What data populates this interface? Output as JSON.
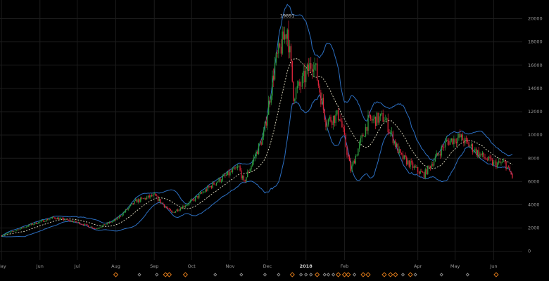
{
  "chart_data": {
    "type": "candlestick",
    "y_ticks": [
      0,
      2000,
      4000,
      6000,
      8000,
      10000,
      12000,
      14000,
      16000,
      18000,
      20000
    ],
    "ylim": [
      -500,
      21000
    ],
    "x_tick_labels": [
      {
        "label": "May",
        "t": "2017-05-01",
        "bold": false
      },
      {
        "label": "Jun",
        "t": "2017-06-01",
        "bold": false
      },
      {
        "label": "Jul",
        "t": "2017-07-01",
        "bold": false
      },
      {
        "label": "Aug",
        "t": "2017-08-01",
        "bold": false
      },
      {
        "label": "Sep",
        "t": "2017-09-01",
        "bold": false
      },
      {
        "label": "Oct",
        "t": "2017-10-01",
        "bold": false
      },
      {
        "label": "Nov",
        "t": "2017-11-01",
        "bold": false
      },
      {
        "label": "Dec",
        "t": "2017-12-01",
        "bold": false
      },
      {
        "label": "2018",
        "t": "2018-01-01",
        "bold": true
      },
      {
        "label": "Feb",
        "t": "2018-02-01",
        "bold": false
      },
      {
        "label": "Apr",
        "t": "2018-04-01",
        "bold": false
      },
      {
        "label": "May",
        "t": "2018-05-01",
        "bold": false
      },
      {
        "label": "Jun",
        "t": "2018-06-01",
        "bold": false
      }
    ],
    "xlim": [
      "2017-05-01",
      "2018-06-24"
    ],
    "peak_annotation": {
      "text": "19891",
      "t": "2017-12-17",
      "value": 19891
    },
    "price_anchors": [
      [
        "2017-05-01",
        1350
      ],
      [
        "2017-05-25",
        2300
      ],
      [
        "2017-06-12",
        2900
      ],
      [
        "2017-07-01",
        2500
      ],
      [
        "2017-07-16",
        1950
      ],
      [
        "2017-08-01",
        2700
      ],
      [
        "2017-08-17",
        4300
      ],
      [
        "2017-09-01",
        4800
      ],
      [
        "2017-09-15",
        3300
      ],
      [
        "2017-10-01",
        4300
      ],
      [
        "2017-10-20",
        5900
      ],
      [
        "2017-11-08",
        7200
      ],
      [
        "2017-11-12",
        5900
      ],
      [
        "2017-11-28",
        10000
      ],
      [
        "2017-12-07",
        16000
      ],
      [
        "2017-12-17",
        19200
      ],
      [
        "2017-12-22",
        13500
      ],
      [
        "2017-12-28",
        14300
      ],
      [
        "2018-01-07",
        16500
      ],
      [
        "2018-01-17",
        11200
      ],
      [
        "2018-01-28",
        11700
      ],
      [
        "2018-02-06",
        7000
      ],
      [
        "2018-02-20",
        11200
      ],
      [
        "2018-03-05",
        11500
      ],
      [
        "2018-03-18",
        8200
      ],
      [
        "2018-04-01",
        6900
      ],
      [
        "2018-04-06",
        6600
      ],
      [
        "2018-04-24",
        9400
      ],
      [
        "2018-05-05",
        9800
      ],
      [
        "2018-05-20",
        8400
      ],
      [
        "2018-06-01",
        7500
      ],
      [
        "2018-06-10",
        7600
      ],
      [
        "2018-06-16",
        6400
      ]
    ],
    "colors": {
      "up": "#2e9e3f",
      "down": "#e0253c",
      "bands": "#2c6fc2",
      "ma": "#e8e4c8",
      "grid": "#1c1c1c",
      "axis_text": "#9a9a9a",
      "marker_orange": "#e07b1a",
      "marker_grey": "#8c8c8c"
    },
    "markers": [
      {
        "t": "2017-08-01",
        "kind": "orange"
      },
      {
        "t": "2017-08-20",
        "kind": "grey"
      },
      {
        "t": "2017-09-03",
        "kind": "grey"
      },
      {
        "t": "2017-09-10",
        "kind": "orange"
      },
      {
        "t": "2017-09-13",
        "kind": "orange"
      },
      {
        "t": "2017-09-26",
        "kind": "orange"
      },
      {
        "t": "2017-10-20",
        "kind": "grey"
      },
      {
        "t": "2017-11-10",
        "kind": "grey"
      },
      {
        "t": "2017-11-29",
        "kind": "grey"
      },
      {
        "t": "2017-12-10",
        "kind": "grey"
      },
      {
        "t": "2017-12-21",
        "kind": "orange"
      },
      {
        "t": "2017-12-28",
        "kind": "grey"
      },
      {
        "t": "2018-01-01",
        "kind": "grey"
      },
      {
        "t": "2018-01-05",
        "kind": "grey"
      },
      {
        "t": "2018-01-10",
        "kind": "orange"
      },
      {
        "t": "2018-01-16",
        "kind": "grey"
      },
      {
        "t": "2018-01-19",
        "kind": "grey"
      },
      {
        "t": "2018-01-23",
        "kind": "grey"
      },
      {
        "t": "2018-01-27",
        "kind": "orange"
      },
      {
        "t": "2018-02-01",
        "kind": "orange"
      },
      {
        "t": "2018-02-04",
        "kind": "orange"
      },
      {
        "t": "2018-02-09",
        "kind": "grey"
      },
      {
        "t": "2018-02-16",
        "kind": "orange"
      },
      {
        "t": "2018-02-20",
        "kind": "orange"
      },
      {
        "t": "2018-03-05",
        "kind": "orange"
      },
      {
        "t": "2018-03-10",
        "kind": "orange"
      },
      {
        "t": "2018-03-14",
        "kind": "orange"
      },
      {
        "t": "2018-03-20",
        "kind": "grey"
      },
      {
        "t": "2018-03-26",
        "kind": "orange"
      },
      {
        "t": "2018-03-30",
        "kind": "grey"
      },
      {
        "t": "2018-04-20",
        "kind": "grey"
      },
      {
        "t": "2018-05-11",
        "kind": "grey"
      },
      {
        "t": "2018-06-03",
        "kind": "orange"
      }
    ]
  }
}
